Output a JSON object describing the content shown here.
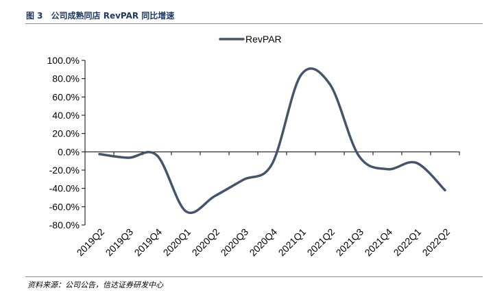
{
  "figure": {
    "title": "图 3　公司成熟同店 RevPAR 同比增速",
    "source": "资料来源：公司公告，信达证券研发中心"
  },
  "chart_data": {
    "type": "line",
    "title": "",
    "xlabel": "",
    "ylabel": "",
    "categories": [
      "2019Q2",
      "2019Q3",
      "2019Q4",
      "2020Q1",
      "2020Q2",
      "2020Q3",
      "2020Q4",
      "2021Q1",
      "2021Q2",
      "2021Q3",
      "2021Q4",
      "2022Q1",
      "2022Q2"
    ],
    "series": [
      {
        "name": "RevPAR",
        "color": "#44546a",
        "values": [
          -2.5,
          -6.5,
          -4.0,
          -65.0,
          -48.5,
          -30.5,
          -13.0,
          84.0,
          74.0,
          -4.0,
          -19.0,
          -12.0,
          -42.0
        ]
      }
    ],
    "ylim": [
      -80,
      100
    ],
    "yticks": [
      100,
      80,
      60,
      40,
      20,
      0,
      -20,
      -40,
      -60,
      -80
    ],
    "ytick_labels": [
      "100.0%",
      "80.0%",
      "60.0%",
      "40.0%",
      "20.0%",
      "0.0%",
      "-20.0%",
      "-40.0%",
      "-60.0%",
      "-80.0%"
    ],
    "legend_position": "top-center",
    "grid": false,
    "smooth": true
  }
}
